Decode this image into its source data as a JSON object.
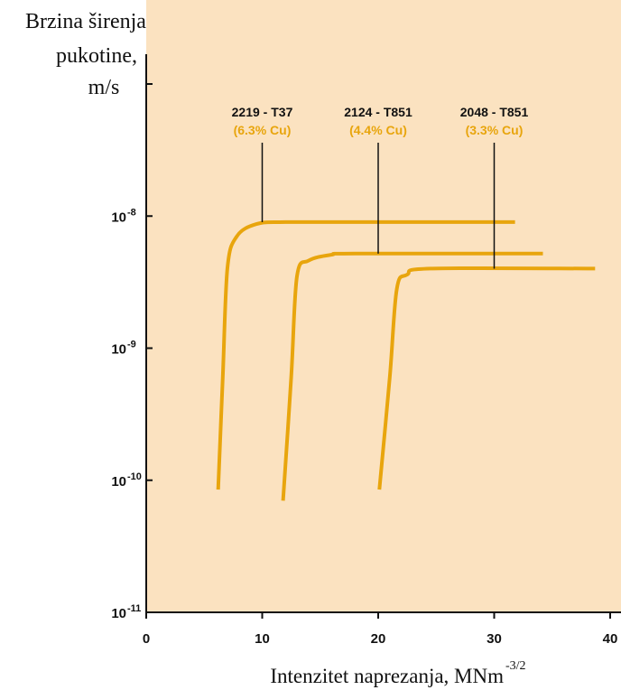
{
  "chart_data": {
    "type": "line",
    "y_scale": "log",
    "ylabel_lines": [
      "Brzina širenja",
      "pukotine,",
      "m/s"
    ],
    "xlabel": "Intenzitet naprezanja, MNm",
    "xlabel_sup": "-3/2",
    "xlim": [
      0,
      40
    ],
    "ylim": [
      1e-11,
      1e-07
    ],
    "x_ticks": [
      {
        "value": 0,
        "label": "0"
      },
      {
        "value": 10,
        "label": "10"
      },
      {
        "value": 20,
        "label": "20"
      },
      {
        "value": 30,
        "label": "30"
      },
      {
        "value": 40,
        "label": "40"
      }
    ],
    "y_ticks": [
      {
        "value": 1e-11,
        "base": "10",
        "exp": "-11"
      },
      {
        "value": 1e-10,
        "base": "10",
        "exp": "-10"
      },
      {
        "value": 1e-09,
        "base": "10",
        "exp": "-9"
      },
      {
        "value": 1e-08,
        "base": "10",
        "exp": "-8"
      },
      {
        "value": 1e-07,
        "base": "",
        "exp": ""
      }
    ],
    "grid": false,
    "background_color": "#fbe2c0",
    "line_color": "#e8a50d",
    "series": [
      {
        "name": "2219 - T37",
        "composition": "(6.3% Cu)",
        "label_x": 10,
        "points": [
          [
            6.2,
            8.5e-11
          ],
          [
            6.6,
            6e-10
          ],
          [
            7.0,
            4e-09
          ],
          [
            7.8,
            7e-09
          ],
          [
            9.5,
            8.7e-09
          ],
          [
            12,
            9e-09
          ],
          [
            20,
            9e-09
          ],
          [
            31.8,
            9e-09
          ]
        ]
      },
      {
        "name": "2124 - T851",
        "composition": "(4.4% Cu)",
        "label_x": 20,
        "points": [
          [
            11.8,
            7e-11
          ],
          [
            12.5,
            6e-10
          ],
          [
            13.0,
            3.5e-09
          ],
          [
            14.0,
            4.6e-09
          ],
          [
            16,
            5.1e-09
          ],
          [
            18,
            5.2e-09
          ],
          [
            34.2,
            5.2e-09
          ]
        ]
      },
      {
        "name": "2048 - T851",
        "composition": "(3.3% Cu)",
        "label_x": 30,
        "points": [
          [
            20.1,
            8.5e-11
          ],
          [
            21.0,
            6e-10
          ],
          [
            21.6,
            2.8e-09
          ],
          [
            22.5,
            3.6e-09
          ],
          [
            24.5,
            4e-09
          ],
          [
            38.7,
            4e-09
          ]
        ]
      }
    ]
  }
}
